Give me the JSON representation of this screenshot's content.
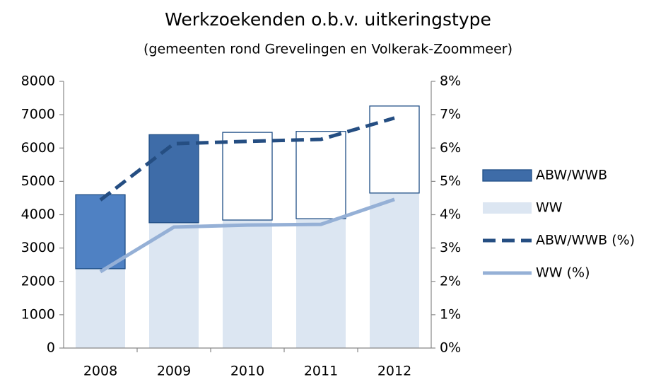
{
  "chart_data": {
    "type": "bar",
    "title": "Werkzoekenden o.b.v. uitkeringstype",
    "subtitle": "(gemeenten rond Grevelingen en Volkerak-Zoommeer)",
    "categories": [
      "2008",
      "2009",
      "2010",
      "2011",
      "2012"
    ],
    "stacked": true,
    "series": [
      {
        "name": "WW",
        "color": "#dce6f2",
        "values": [
          2380,
          3760,
          3840,
          3880,
          4650
        ]
      },
      {
        "name": "ABW/WWB",
        "color": "#3e6ca8",
        "edge": "#1f4e85",
        "colors": [
          "#4f81c3",
          "#3e6ca8",
          "#ffffff",
          "#ffffff",
          "#ffffff"
        ],
        "values": [
          2220,
          2640,
          2630,
          2620,
          2610
        ]
      },
      {
        "name": "ABW/WWB (%)",
        "type": "line",
        "dash": true,
        "axis": "y2",
        "color": "#254e82",
        "values": [
          4.44,
          6.13,
          6.2,
          6.26,
          6.9
        ]
      },
      {
        "name": "WW (%)",
        "type": "line",
        "axis": "y2",
        "color": "#95b0d6",
        "values": [
          2.29,
          3.63,
          3.69,
          3.71,
          4.46
        ]
      }
    ],
    "legend_order": [
      1,
      0,
      2,
      3
    ],
    "legend": "right",
    "ylim": [
      0,
      8000
    ],
    "yticks": [
      0,
      1000,
      2000,
      3000,
      4000,
      5000,
      6000,
      7000,
      8000
    ],
    "y2lim": [
      0,
      8
    ],
    "y2ticks": [
      {
        "value": 0,
        "label": "0%"
      },
      {
        "value": 1,
        "label": "1%"
      },
      {
        "value": 2,
        "label": "2%"
      },
      {
        "value": 3,
        "label": "3%"
      },
      {
        "value": 4,
        "label": "4%"
      },
      {
        "value": 5,
        "label": "5%"
      },
      {
        "value": 6,
        "label": "6%"
      },
      {
        "value": 7,
        "label": "7%"
      },
      {
        "value": 8,
        "label": "8%"
      }
    ]
  }
}
